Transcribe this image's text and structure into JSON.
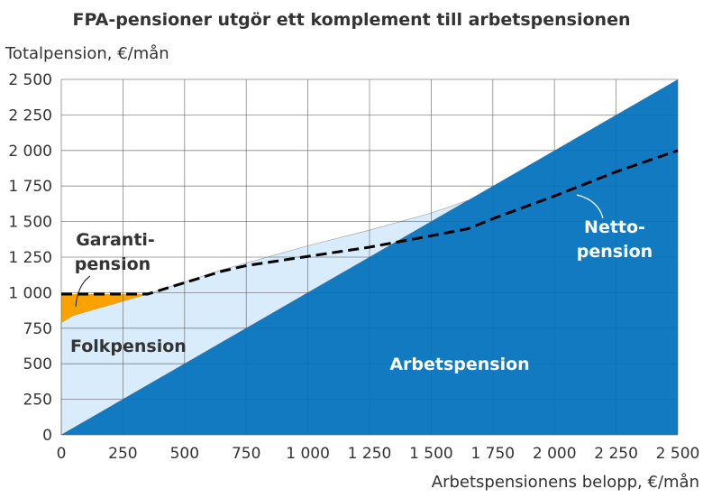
{
  "chart_data": {
    "type": "area",
    "title": "FPA-pensioner utgör ett komplement till arbetspensionen",
    "ylabel": "Totalpension, €/mån",
    "xlabel": "Arbetspensionens belopp, €/mån",
    "xlim": [
      0,
      2500
    ],
    "ylim": [
      0,
      2500
    ],
    "grid": true,
    "x_ticks": [
      0,
      250,
      500,
      750,
      1000,
      1250,
      1500,
      1750,
      2000,
      2250,
      2500
    ],
    "y_ticks": [
      0,
      250,
      500,
      750,
      1000,
      1250,
      1500,
      1750,
      2000,
      2250,
      2500
    ],
    "x_tick_labels": [
      "0",
      "250",
      "500",
      "750",
      "1 000",
      "1 250",
      "1 500",
      "1 750",
      "2 000",
      "2 250",
      "2 500"
    ],
    "y_tick_labels": [
      "0",
      "250",
      "500",
      "750",
      "1 000",
      "1 250",
      "1 500",
      "1 750",
      "2 000",
      "2 250",
      "2 500"
    ],
    "series": [
      {
        "name": "Arbetspension",
        "color": "#0070BC",
        "points": [
          [
            0,
            0
          ],
          [
            2500,
            2500
          ]
        ]
      },
      {
        "name": "Folkpension",
        "color": "#D8ECFB",
        "top": [
          [
            0,
            790
          ],
          [
            50,
            840
          ],
          [
            150,
            890
          ],
          [
            350,
            990
          ],
          [
            650,
            1160
          ],
          [
            1000,
            1330
          ],
          [
            1250,
            1440
          ],
          [
            1500,
            1560
          ],
          [
            1650,
            1650
          ]
        ]
      },
      {
        "name": "Garantipension",
        "color": "#F9A200",
        "top": [
          [
            0,
            990
          ],
          [
            350,
            990
          ]
        ]
      },
      {
        "name": "Nettopension",
        "color": "#000000",
        "style": "dashed",
        "points": [
          [
            0,
            990
          ],
          [
            350,
            990
          ],
          [
            500,
            1070
          ],
          [
            650,
            1150
          ],
          [
            750,
            1190
          ],
          [
            1000,
            1255
          ],
          [
            1250,
            1320
          ],
          [
            1500,
            1400
          ],
          [
            1650,
            1450
          ],
          [
            1750,
            1520
          ],
          [
            2000,
            1680
          ],
          [
            2250,
            1850
          ],
          [
            2500,
            2000
          ]
        ]
      }
    ],
    "labels": {
      "garanti": [
        "Garanti-",
        "pension"
      ],
      "folk": "Folkpension",
      "arbets": "Arbetspension",
      "netto": [
        "Netto-",
        "pension"
      ]
    }
  }
}
